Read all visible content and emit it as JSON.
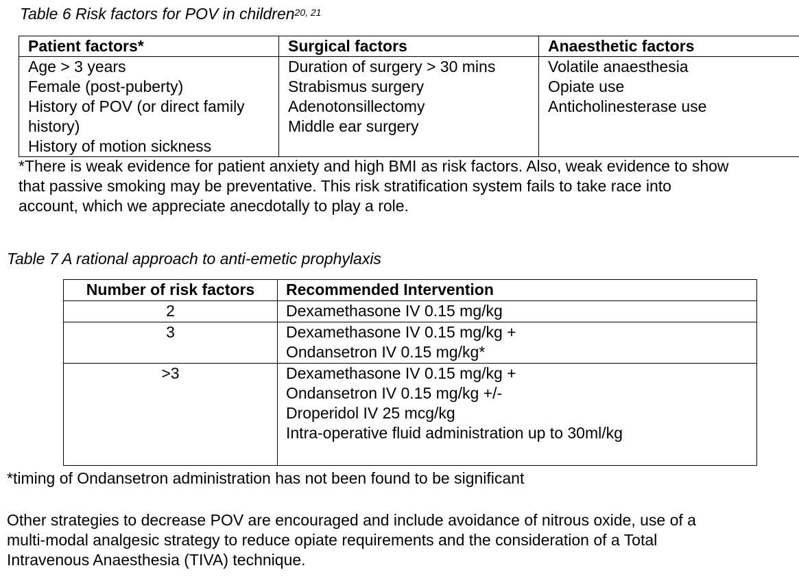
{
  "table6": {
    "caption": "Table 6 Risk factors for POV in children",
    "caption_ref": "20, 21",
    "headers": [
      "Patient factors*",
      "Surgical factors",
      "Anaesthetic factors"
    ],
    "patient_factors": [
      "Age > 3 years",
      "Female (post-puberty)",
      "History of POV (or direct family",
      "history)",
      "History of motion sickness"
    ],
    "surgical_factors": [
      "Duration of surgery > 30 mins",
      "Strabismus surgery",
      "Adenotonsillectomy",
      "Middle ear surgery"
    ],
    "anaesthetic_factors": [
      "Volatile anaesthesia",
      "Opiate use",
      "Anticholinesterase use"
    ],
    "footnote": [
      "*There is weak evidence for patient anxiety and high BMI as risk factors. Also, weak evidence to show",
      "that passive smoking may be preventative. This risk stratification system fails to take race into",
      "account, which we appreciate anecdotally to play a role."
    ]
  },
  "table7": {
    "caption": "Table 7 A rational approach to anti-emetic prophylaxis",
    "headers": [
      "Number of risk factors",
      "Recommended Intervention"
    ],
    "rows": [
      {
        "count": "2",
        "lines": [
          "Dexamethasone IV 0.15 mg/kg"
        ]
      },
      {
        "count": "3",
        "lines": [
          "Dexamethasone IV 0.15 mg/kg +",
          "Ondansetron IV 0.15 mg/kg*"
        ]
      },
      {
        "count": ">3",
        "lines": [
          "Dexamethasone IV 0.15 mg/kg +",
          "Ondansetron IV 0.15 mg/kg +/-",
          "Droperidol IV 25 mcg/kg",
          "Intra-operative fluid administration up to 30ml/kg"
        ]
      }
    ],
    "footnote": "*timing of Ondansetron administration has not been found to be significant"
  },
  "closing_paragraph": [
    "Other strategies to decrease POV are encouraged and include avoidance of nitrous oxide, use of a",
    "multi-modal analgesic strategy to reduce opiate requirements and the consideration of a Total",
    "Intravenous Anaesthesia (TIVA) technique."
  ]
}
